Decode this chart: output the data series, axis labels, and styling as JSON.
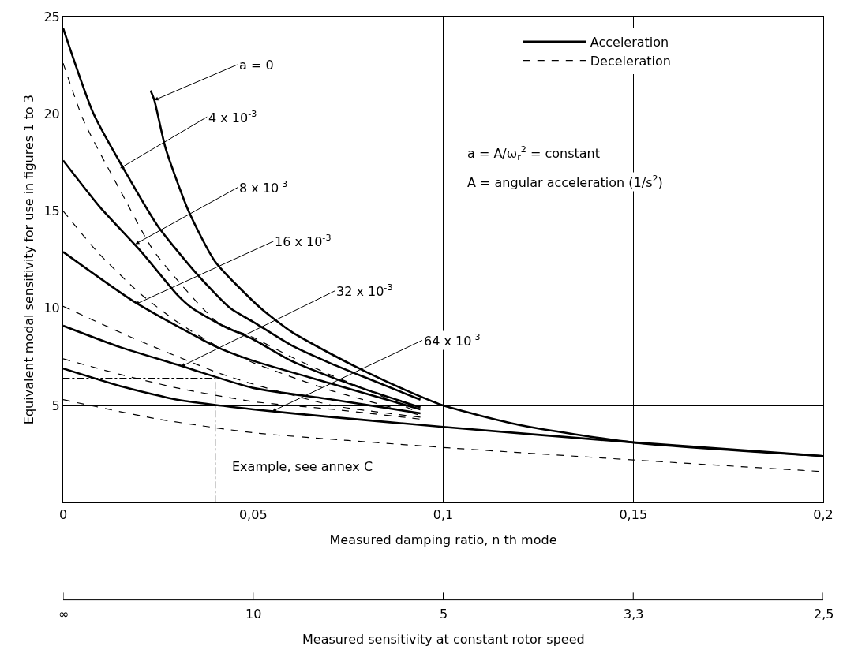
{
  "chart_data": {
    "type": "line",
    "xlabel": "Measured damping ratio, n th mode",
    "ylabel": "Equivalent modal sensitivity for use in figures 1 to 3",
    "x2label": "Measured sensitivity at constant rotor speed",
    "xlim": [
      0,
      0.2
    ],
    "ylim": [
      0,
      25
    ],
    "xticks": [
      0,
      {
        "value": 0.05,
        "label": "0,05"
      },
      {
        "value": 0.1,
        "label": "0,1"
      },
      {
        "value": 0.15,
        "label": "0,15"
      },
      {
        "value": 0.2,
        "label": "0,2"
      }
    ],
    "yticks": [
      5,
      10,
      15,
      20,
      25
    ],
    "grid": true,
    "legend": "top right",
    "series": [
      {
        "name": "Acceleration",
        "color": "#000000",
        "line_style": "solid",
        "x": [
          0.023,
          0.024,
          0.027,
          0.033,
          0.04,
          0.052,
          0.06,
          0.07,
          0.08,
          0.09,
          0.1,
          0.12,
          0.15,
          0.2
        ],
        "values": [
          21.2,
          20.7,
          18.2,
          15.0,
          12.4,
          10.0,
          8.8,
          7.7,
          6.7,
          5.8,
          5.0,
          4.0,
          3.1,
          2.4
        ]
      },
      {
        "color": "#000000",
        "line_style": "solid",
        "x": [
          0,
          0.008,
          0.017,
          0.025,
          0.035,
          0.044,
          0.05,
          0.06,
          0.07,
          0.08,
          0.094
        ],
        "values": [
          24.4,
          20.0,
          16.8,
          14.2,
          11.8,
          10.0,
          9.3,
          8.1,
          7.2,
          6.4,
          5.3
        ]
      },
      {
        "color": "#000000",
        "line_style": "solid",
        "x": [
          0,
          0.0097,
          0.0206,
          0.03,
          0.034,
          0.042,
          0.05,
          0.06,
          0.07,
          0.08,
          0.094
        ],
        "values": [
          17.6,
          15.2,
          12.9,
          10.7,
          10.0,
          9.1,
          8.4,
          7.3,
          6.5,
          5.8,
          4.9
        ]
      },
      {
        "color": "#000000",
        "line_style": "solid",
        "x": [
          0,
          0.019,
          0.0405,
          0.05,
          0.071,
          0.094
        ],
        "values": [
          12.9,
          10.3,
          8.0,
          7.3,
          6.1,
          4.8
        ]
      },
      {
        "color": "#000000",
        "line_style": "solid",
        "x": [
          0,
          0.015,
          0.03,
          0.05,
          0.071,
          0.094
        ],
        "values": [
          9.1,
          8.0,
          7.1,
          5.9,
          5.3,
          4.6
        ]
      },
      {
        "color": "#000000",
        "line_style": "solid",
        "x": [
          0,
          0.015,
          0.03,
          0.05,
          0.071,
          0.1,
          0.15,
          0.2
        ],
        "values": [
          6.9,
          6.0,
          5.3,
          4.8,
          4.4,
          3.9,
          3.1,
          2.4
        ]
      },
      {
        "name": "Deceleration",
        "color": "#000000",
        "line_style": "dashed",
        "x": [
          0,
          0.0055,
          0.016,
          0.024,
          0.0405,
          0.05,
          0.06,
          0.07,
          0.08,
          0.094
        ],
        "values": [
          22.6,
          19.6,
          15.7,
          12.9,
          9.3,
          8.5,
          7.5,
          6.6,
          5.8,
          4.6
        ]
      },
      {
        "color": "#000000",
        "line_style": "dashed",
        "x": [
          0,
          0.009,
          0.02,
          0.03,
          0.04,
          0.05,
          0.07,
          0.094
        ],
        "values": [
          15.0,
          12.9,
          10.8,
          9.3,
          8.1,
          7.2,
          5.8,
          4.5
        ]
      },
      {
        "color": "#000000",
        "line_style": "dashed",
        "x": [
          0,
          0.018,
          0.0405,
          0.05,
          0.071,
          0.094
        ],
        "values": [
          10.1,
          8.5,
          6.7,
          6.1,
          5.0,
          4.4
        ]
      },
      {
        "color": "#000000",
        "line_style": "dashed",
        "x": [
          0,
          0.015,
          0.03,
          0.05,
          0.071,
          0.094
        ],
        "values": [
          7.4,
          6.6,
          5.9,
          5.2,
          4.8,
          4.3
        ]
      },
      {
        "color": "#000000",
        "line_style": "dashed",
        "x": [
          0,
          0.025,
          0.05,
          0.075,
          0.103,
          0.15,
          0.2
        ],
        "values": [
          5.3,
          4.3,
          3.6,
          3.2,
          2.8,
          2.2,
          1.6
        ]
      },
      {
        "color": "#000000",
        "line_style": "dashdot",
        "x": [
          0.04,
          0.04,
          0
        ],
        "values": [
          0,
          6.4,
          6.4
        ]
      }
    ],
    "annotations": [
      {
        "text": "a = 0",
        "x": 0.024,
        "y": 20.7
      },
      {
        "text": "4 x 10$^{-3}$",
        "x": 0.015,
        "y": 17.2
      },
      {
        "text": "8 x 10$^{-3}$",
        "x": 0.019,
        "y": 13.3
      },
      {
        "text": "16 x 10$^{-3}$",
        "x": 0.019,
        "y": 10.2
      },
      {
        "text": "32 x 10$^{-3}$",
        "x": 0.031,
        "y": 7.0
      },
      {
        "text": "64 x 10$^{-3}$",
        "x": 0.055,
        "y": 4.7
      },
      "a = A/ω$_{r}$$^{2}$ = constant",
      "A = angular acceleration (1/s$^{2}$)",
      "Example, see annex C",
      {
        "text": "∞",
        "x": 0
      },
      {
        "text": "10",
        "x": 0.05
      },
      {
        "text": "5",
        "x": 0.1
      },
      {
        "text": "3,3",
        "x": 0.15
      },
      {
        "text": "2,5",
        "x": 0.2
      }
    ]
  }
}
